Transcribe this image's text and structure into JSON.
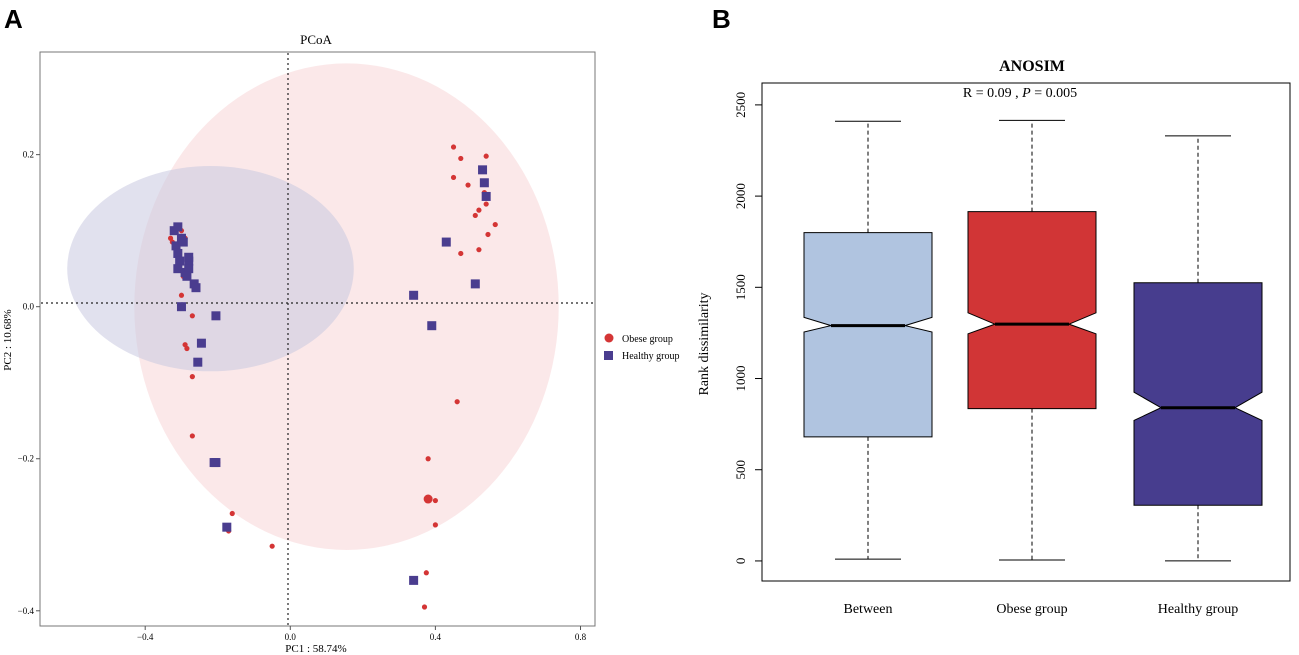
{
  "chart_data": [
    {
      "id": "A",
      "panel_label": "A",
      "type": "scatter",
      "title": "PCoA",
      "xlabel": "PC1 : 58.74%",
      "ylabel": "PC2 : 10.68%",
      "xlim": [
        -0.69,
        0.84
      ],
      "ylim": [
        -0.42,
        0.335
      ],
      "xticks": [
        -0.4,
        0.0,
        0.4,
        0.8
      ],
      "xtick_labels": [
        "−0.4",
        "0.0",
        "0.4",
        "0.8"
      ],
      "yticks": [
        0.2,
        0.0,
        -0.2,
        -0.4
      ],
      "ytick_labels": [
        "0.2",
        "0.0",
        "−0.2",
        "−0.4"
      ],
      "reference_lines": {
        "x": 0,
        "y": 0,
        "style": "dotted"
      },
      "legend": {
        "position": "right",
        "entries": [
          {
            "label": "Obese group",
            "marker": "circle",
            "color": "#D43535"
          },
          {
            "label": "Healthy group",
            "marker": "square",
            "color": "#4A3D8F"
          }
        ]
      },
      "ellipses": [
        {
          "group": "Obese group",
          "center": [
            0.155,
            0.0
          ],
          "radius_x": 0.585,
          "radius_y": 0.32,
          "fill": "#F7D5D7",
          "opacity": 0.55
        },
        {
          "group": "Healthy group",
          "center": [
            -0.22,
            0.05
          ],
          "radius_x": 0.395,
          "radius_y": 0.135,
          "fill": "#C9C8E0",
          "opacity": 0.55
        }
      ],
      "series": [
        {
          "name": "Obese group",
          "marker": "circle",
          "color": "#D43535",
          "points": [
            [
              -0.33,
              0.09
            ],
            [
              -0.325,
              0.085
            ],
            [
              -0.31,
              0.075
            ],
            [
              -0.305,
              0.06
            ],
            [
              -0.3,
              0.1
            ],
            [
              -0.29,
              0.09
            ],
            [
              -0.285,
              0.05
            ],
            [
              -0.295,
              0.04
            ],
            [
              -0.3,
              0.015
            ],
            [
              -0.29,
              -0.05
            ],
            [
              -0.285,
              -0.055
            ],
            [
              -0.27,
              -0.012
            ],
            [
              -0.27,
              -0.092
            ],
            [
              -0.27,
              -0.17
            ],
            [
              -0.2,
              -0.205
            ],
            [
              -0.16,
              -0.272
            ],
            [
              -0.17,
              -0.295
            ],
            [
              -0.05,
              -0.315
            ],
            [
              0.375,
              -0.35
            ],
            [
              0.37,
              -0.395
            ],
            [
              0.38,
              -0.2
            ],
            [
              0.4,
              -0.255
            ],
            [
              0.4,
              -0.287
            ],
            [
              0.46,
              -0.125
            ],
            [
              0.47,
              0.07
            ],
            [
              0.49,
              0.16
            ],
            [
              0.45,
              0.21
            ],
            [
              0.47,
              0.195
            ],
            [
              0.45,
              0.17
            ],
            [
              0.54,
              0.198
            ],
            [
              0.51,
              0.12
            ],
            [
              0.52,
              0.127
            ],
            [
              0.535,
              0.15
            ],
            [
              0.54,
              0.135
            ],
            [
              0.545,
              0.095
            ],
            [
              0.565,
              0.108
            ],
            [
              0.52,
              0.075
            ]
          ],
          "large_points": [
            [
              0.38,
              -0.253
            ]
          ]
        },
        {
          "name": "Healthy group",
          "marker": "square",
          "color": "#4A3D8F",
          "points": [
            [
              -0.32,
              0.1
            ],
            [
              -0.31,
              0.105
            ],
            [
              -0.315,
              0.08
            ],
            [
              -0.31,
              0.07
            ],
            [
              -0.3,
              0.09
            ],
            [
              -0.295,
              0.085
            ],
            [
              -0.305,
              0.06
            ],
            [
              -0.31,
              0.05
            ],
            [
              -0.29,
              0.045
            ],
            [
              -0.28,
              0.06
            ],
            [
              -0.28,
              0.065
            ],
            [
              -0.28,
              0.05
            ],
            [
              -0.285,
              0.04
            ],
            [
              -0.265,
              0.03
            ],
            [
              -0.26,
              0.025
            ],
            [
              -0.3,
              0.0
            ],
            [
              -0.245,
              -0.048
            ],
            [
              -0.255,
              -0.073
            ],
            [
              -0.205,
              -0.012
            ],
            [
              -0.205,
              -0.205
            ],
            [
              -0.21,
              -0.205
            ],
            [
              -0.175,
              -0.29
            ],
            [
              0.34,
              0.015
            ],
            [
              0.39,
              -0.025
            ],
            [
              0.43,
              0.085
            ],
            [
              0.51,
              0.03
            ],
            [
              0.53,
              0.18
            ],
            [
              0.535,
              0.163
            ],
            [
              0.54,
              0.145
            ],
            [
              0.34,
              -0.36
            ]
          ]
        }
      ]
    },
    {
      "id": "B",
      "panel_label": "B",
      "type": "boxplot",
      "title": "ANOSIM",
      "subtitle": {
        "r_text": "R =  0.09 ,",
        "p_label": "P",
        "p_value": " =  0.005"
      },
      "xlabel": "",
      "ylabel": "Rank dissimilarity",
      "ylim": [
        -110,
        2620
      ],
      "yticks": [
        0,
        500,
        1000,
        1500,
        2000,
        2500
      ],
      "notched": true,
      "categories": [
        "Between",
        "Obese group",
        "Healthy group"
      ],
      "boxes": [
        {
          "name": "Between",
          "color": "#B0C4E0",
          "whisker_low": 10,
          "q1": 680,
          "median": 1290,
          "q3": 1800,
          "whisker_high": 2410,
          "notch_low": 1255,
          "notch_high": 1335
        },
        {
          "name": "Obese group",
          "color": "#D13536",
          "whisker_low": 5,
          "q1": 835,
          "median": 1298,
          "q3": 1915,
          "whisker_high": 2415,
          "notch_low": 1245,
          "notch_high": 1360
        },
        {
          "name": "Healthy group",
          "color": "#473D8E",
          "whisker_low": 0,
          "q1": 305,
          "median": 840,
          "q3": 1525,
          "whisker_high": 2330,
          "notch_low": 770,
          "notch_high": 925
        }
      ]
    }
  ]
}
